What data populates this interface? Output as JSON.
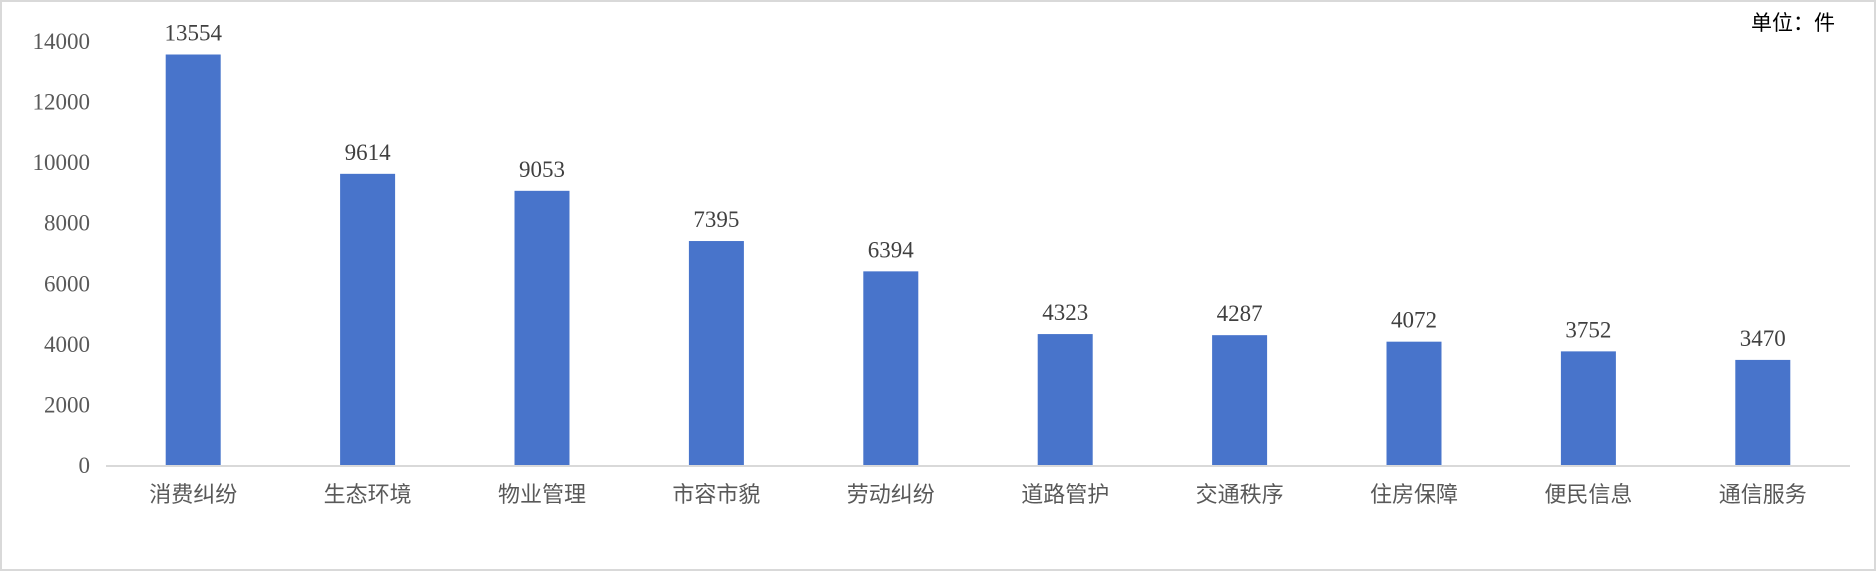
{
  "chart_data": {
    "type": "bar",
    "title": "",
    "xlabel": "",
    "ylabel": "",
    "unit_label": "单位：件",
    "categories": [
      "消费纠纷",
      "生态环境",
      "物业管理",
      "市容市貌",
      "劳动纠纷",
      "道路管护",
      "交通秩序",
      "住房保障",
      "便民信息",
      "通信服务"
    ],
    "values": [
      13554,
      9614,
      9053,
      7395,
      6394,
      4323,
      4287,
      4072,
      3752,
      3470
    ],
    "ylim": [
      0,
      14000
    ],
    "yticks": [
      0,
      2000,
      4000,
      6000,
      8000,
      10000,
      12000,
      14000
    ],
    "grid": false,
    "legend": "none",
    "bar_color": "#4874cb",
    "data_labels": true
  }
}
